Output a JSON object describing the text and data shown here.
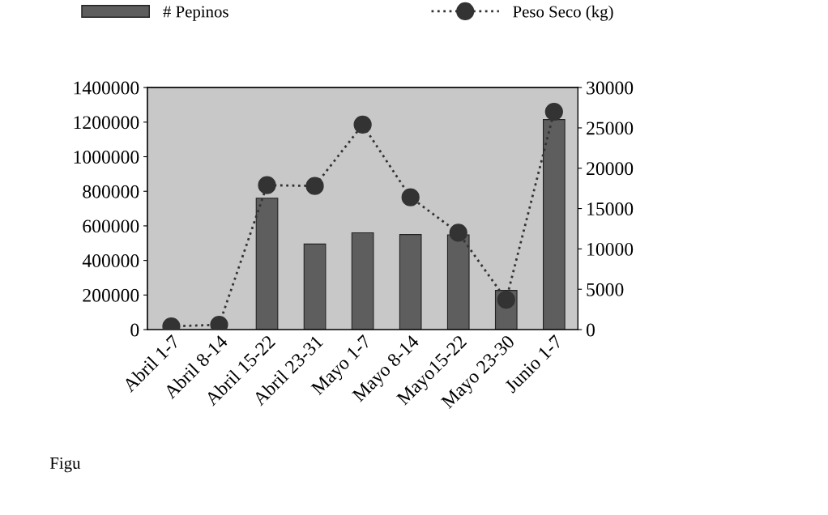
{
  "chart_data": {
    "type": "bar",
    "categories": [
      "Abril 1-7",
      "Abril 8-14",
      "Abril 15-22",
      "Abril 23-31",
      "Mayo 1-7",
      "Mayo 8-14",
      "Mayo15-22",
      "Mayo 23-30",
      "Junio 1-7"
    ],
    "series": [
      {
        "name": "# Pepinos",
        "color": "#5e5e5e",
        "values": [
          0,
          null,
          760000,
          495000,
          560000,
          550000,
          548000,
          227000,
          1215000
        ]
      },
      {
        "name": "Peso Seco (kg)",
        "type": "line",
        "axis": "y2",
        "color": "#333333",
        "marker": "circle",
        "line_style": "dotted",
        "values": [
          400,
          600,
          17900,
          17800,
          25400,
          16400,
          12000,
          3700,
          27000
        ]
      }
    ],
    "ylim": [
      0,
      1400000
    ],
    "yticks": [
      0,
      200000,
      400000,
      600000,
      800000,
      1000000,
      1200000,
      1400000
    ],
    "y2lim": [
      0,
      30000
    ],
    "y2ticks": [
      0,
      5000,
      10000,
      15000,
      20000,
      25000,
      30000
    ],
    "grid": false,
    "legend": "top",
    "annotations": [
      "Figu"
    ]
  }
}
